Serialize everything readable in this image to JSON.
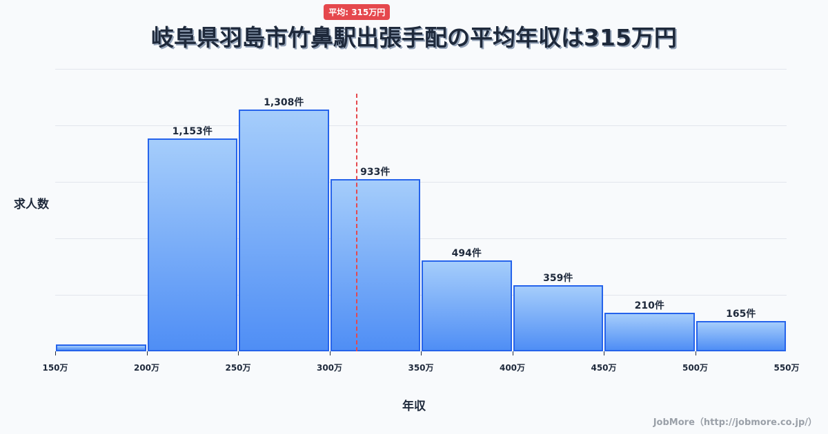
{
  "title": "岐阜県羽島市竹鼻駅出張手配の平均年収は315万円",
  "chart_data": {
    "type": "bar",
    "title": "岐阜県羽島市竹鼻駅出張手配の平均年収は315万円",
    "xlabel": "年収",
    "ylabel": "求人数",
    "bin_edges": [
      150,
      200,
      250,
      300,
      350,
      400,
      450,
      500,
      550
    ],
    "tick_labels": [
      "150万",
      "200万",
      "250万",
      "300万",
      "350万",
      "400万",
      "450万",
      "500万",
      "550万"
    ],
    "categories": [
      "150-200万",
      "200-250万",
      "250-300万",
      "300-350万",
      "350-400万",
      "400-450万",
      "450-500万",
      "500-550万"
    ],
    "values": [
      37,
      1153,
      1308,
      933,
      494,
      359,
      210,
      165
    ],
    "value_labels": [
      "",
      "1,153件",
      "1,308件",
      "933件",
      "494件",
      "359件",
      "210件",
      "165件"
    ],
    "average": 315,
    "average_label": "平均: 315万円",
    "ylim": [
      0,
      1530
    ],
    "grid": true,
    "legend": "none"
  },
  "colors": {
    "bar_border": "#2563eb",
    "bar_top": "#a5cdfb",
    "bar_bottom": "#4f8ef5",
    "average_line": "#e5484d",
    "text": "#1e293b"
  },
  "footer": "JobMore（http://jobmore.co.jp/）"
}
